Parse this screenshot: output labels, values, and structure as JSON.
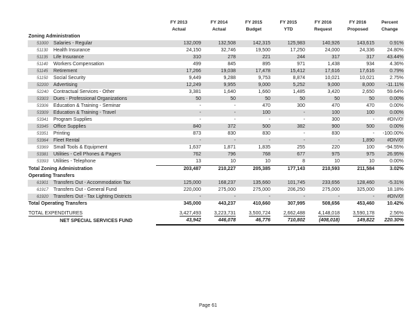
{
  "columns": [
    {
      "l1": "FY 2013",
      "l2": "Actual"
    },
    {
      "l1": "FY 2014",
      "l2": "Actual"
    },
    {
      "l1": "FY 2015",
      "l2": "Budget"
    },
    {
      "l1": "FY 2015",
      "l2": "YTD"
    },
    {
      "l1": "FY 2016",
      "l2": "Request"
    },
    {
      "l1": "FY 2016",
      "l2": "Proposed"
    },
    {
      "l1": "Percent",
      "l2": "Change"
    }
  ],
  "sections": [
    {
      "title": "Zoning Administration",
      "rows": [
        {
          "code": "51000",
          "name": "Salaries - Regular",
          "v": [
            "132,009",
            "132,508",
            "142,315",
            "125,983",
            "140,926",
            "143,615",
            "0.91%"
          ]
        },
        {
          "code": "51130",
          "name": "Health Insurance",
          "v": [
            "24,150",
            "32,746",
            "19,500",
            "17,250",
            "24,000",
            "24,336",
            "24.80%"
          ]
        },
        {
          "code": "51135",
          "name": "Life Insurance",
          "v": [
            "310",
            "278",
            "221",
            "244",
            "317",
            "317",
            "43.44%"
          ]
        },
        {
          "code": "51140",
          "name": "Workers Compensation",
          "v": [
            "499",
            "845",
            "895",
            "971",
            "1,438",
            "934",
            "4.36%"
          ]
        },
        {
          "code": "51145",
          "name": "Retirement",
          "v": [
            "17,266",
            "19,038",
            "17,478",
            "15,412",
            "17,616",
            "17,616",
            "0.79%"
          ]
        },
        {
          "code": "51150",
          "name": "Social Security",
          "v": [
            "9,449",
            "9,288",
            "9,753",
            "8,874",
            "10,021",
            "10,021",
            "2.75%"
          ]
        },
        {
          "code": "52200",
          "name": "Advertising",
          "v": [
            "12,249",
            "9,955",
            "9,000",
            "5,252",
            "9,000",
            "8,000",
            "-11.11%"
          ]
        },
        {
          "code": "52240",
          "name": "Contractual Services - Other",
          "v": [
            "3,381",
            "1,640",
            "1,660",
            "1,485",
            "3,420",
            "2,650",
            "59.64%"
          ]
        },
        {
          "code": "53303",
          "name": "Dues - Professional Organizations",
          "v": [
            "50",
            "50",
            "50",
            "50",
            "50",
            "50",
            "0.00%"
          ]
        },
        {
          "code": "53306",
          "name": "Education & Training - Seminar",
          "v": [
            "-",
            "-",
            "470",
            "300",
            "470",
            "470",
            "0.00%"
          ]
        },
        {
          "code": "53309",
          "name": "Education & Training - Travel",
          "v": [
            "-",
            "-",
            "100",
            "-",
            "100",
            "100",
            "0.00%"
          ]
        },
        {
          "code": "53341",
          "name": "Program Supplies",
          "v": [
            "-",
            "-",
            "-",
            "-",
            "300",
            "-",
            "#DIV/0!"
          ]
        },
        {
          "code": "53345",
          "name": "Office Supplies",
          "v": [
            "840",
            "372",
            "500",
            "382",
            "900",
            "500",
            "0.00%"
          ]
        },
        {
          "code": "53351",
          "name": "Printing",
          "v": [
            "873",
            "830",
            "830",
            "-",
            "830",
            "-",
            "-100.00%"
          ]
        },
        {
          "code": "53364",
          "name": "Fleet Rental",
          "v": [
            "-",
            "-",
            "-",
            "-",
            "-",
            "1,890",
            "#DIV/0!"
          ]
        },
        {
          "code": "53369",
          "name": "Small Tools & Equipment",
          "v": [
            "1,637",
            "1,871",
            "1,835",
            "255",
            "220",
            "100",
            "-94.55%"
          ]
        },
        {
          "code": "53381",
          "name": "Utilities - Cell Phones & Pagers",
          "v": [
            "762",
            "796",
            "768",
            "677",
            "975",
            "975",
            "26.95%"
          ]
        },
        {
          "code": "53393",
          "name": "Utilities - Telephone",
          "v": [
            "13",
            "10",
            "10",
            "8",
            "10",
            "10",
            "0.00%"
          ]
        }
      ],
      "total": {
        "name": "Total Zoning Administration",
        "v": [
          "203,487",
          "210,227",
          "205,385",
          "177,143",
          "210,593",
          "211,584",
          "3.02%"
        ]
      }
    },
    {
      "title": "Operating Transfers",
      "rows": [
        {
          "code": "61901",
          "name": "Transfers Out - Accommodation Tax",
          "v": [
            "125,000",
            "168,237",
            "135,660",
            "101,745",
            "233,656",
            "128,460",
            "-5.31%"
          ]
        },
        {
          "code": "61917",
          "name": "Transfers Out - General Fund",
          "v": [
            "220,000",
            "275,000",
            "275,000",
            "206,250",
            "275,000",
            "325,000",
            "18.18%"
          ]
        },
        {
          "code": "61920",
          "name": "Transfers Out - Tax Lighting Districts",
          "v": [
            "-",
            "-",
            "-",
            "-",
            "-",
            "-",
            "#DIV/0!"
          ]
        }
      ],
      "total": {
        "name": "Total Operating Transfers",
        "v": [
          "345,000",
          "443,237",
          "410,660",
          "307,995",
          "508,656",
          "453,460",
          "10.42%"
        ]
      }
    }
  ],
  "total_expenditures": {
    "name": "TOTAL EXPENDITURES",
    "v": [
      "3,427,493",
      "3,223,731",
      "3,500,724",
      "2,662,488",
      "4,148,018",
      "3,590,178",
      "2.56%"
    ]
  },
  "net": {
    "name": "NET SPECIAL SERVICES FUND",
    "v": [
      "43,942",
      "446,078",
      "46,776",
      "710,802",
      "(408,018)",
      "149,822",
      "220.30%"
    ]
  },
  "footer": {
    "page": "Page 61"
  },
  "colors": {
    "band": "#dcdcdc"
  }
}
